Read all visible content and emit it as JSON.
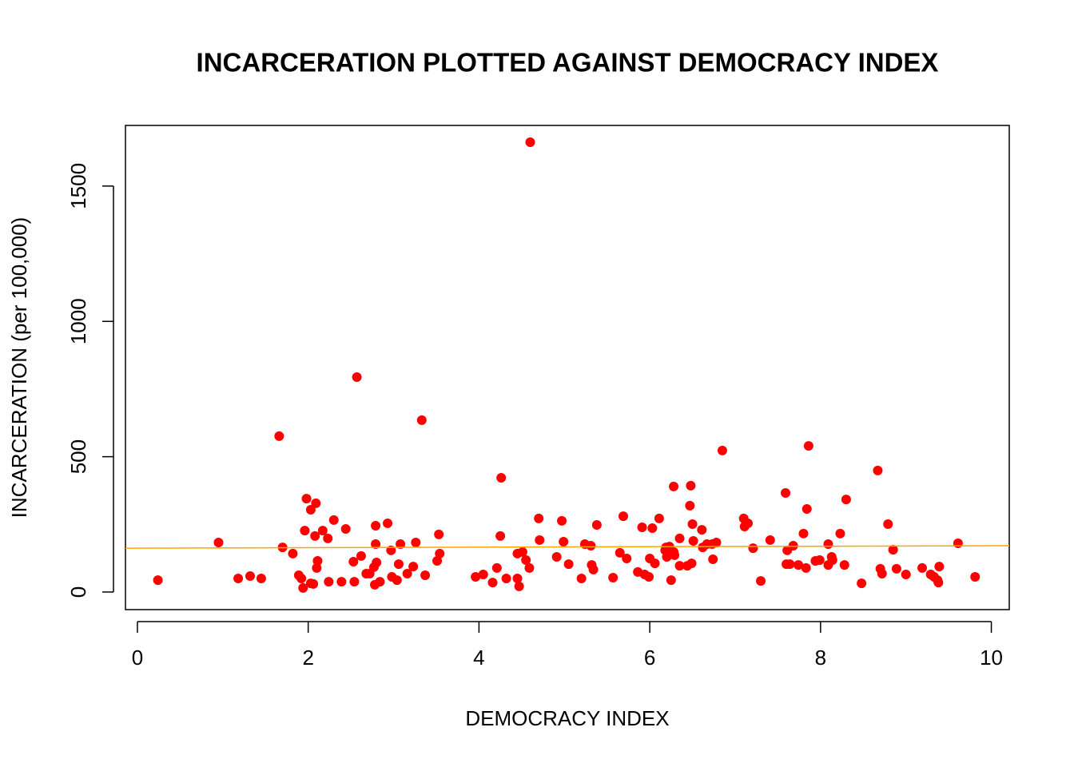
{
  "chart_data": {
    "type": "scatter",
    "title": "INCARCERATION PLOTTED AGAINST DEMOCRACY INDEX",
    "xlabel": "DEMOCRACY INDEX",
    "ylabel": "INCARCERATION (per 100,000)",
    "xlim": [
      -0.14,
      10.21
    ],
    "ylim": [
      -65,
      1724
    ],
    "xticks": [
      0,
      2,
      4,
      6,
      8,
      10
    ],
    "yticks": [
      0,
      500,
      1000,
      1500
    ],
    "grid": false,
    "series": [
      {
        "color": "#ff0000",
        "x": [
          0.24,
          0.95,
          1.18,
          1.32,
          1.45,
          1.66,
          1.7,
          1.82,
          1.89,
          1.92,
          1.94,
          1.96,
          1.98,
          2.03,
          2.03,
          2.06,
          2.08,
          2.09,
          2.1,
          2.11,
          2.17,
          2.23,
          2.24,
          2.3,
          2.39,
          2.44,
          2.53,
          2.54,
          2.57,
          2.62,
          2.68,
          2.72,
          2.77,
          2.78,
          2.79,
          2.79,
          2.8,
          2.84,
          2.93,
          2.97,
          2.98,
          3.04,
          3.06,
          3.08,
          3.16,
          3.23,
          3.26,
          3.33,
          3.37,
          3.51,
          3.53,
          3.54,
          3.96,
          4.05,
          4.16,
          4.21,
          4.25,
          4.26,
          4.32,
          4.45,
          4.45,
          4.47,
          4.51,
          4.55,
          4.59,
          4.6,
          4.7,
          4.71,
          4.91,
          4.97,
          4.99,
          5.05,
          5.2,
          5.24,
          5.31,
          5.32,
          5.34,
          5.38,
          5.57,
          5.65,
          5.69,
          5.73,
          5.86,
          5.91,
          5.94,
          5.99,
          6.0,
          6.03,
          6.06,
          6.11,
          6.18,
          6.19,
          6.2,
          6.23,
          6.25,
          6.28,
          6.28,
          6.29,
          6.35,
          6.35,
          6.44,
          6.47,
          6.48,
          6.49,
          6.5,
          6.51,
          6.61,
          6.62,
          6.67,
          6.73,
          6.74,
          6.78,
          6.85,
          7.1,
          7.11,
          7.15,
          7.21,
          7.3,
          7.41,
          7.59,
          7.6,
          7.61,
          7.64,
          7.68,
          7.74,
          7.8,
          7.83,
          7.84,
          7.86,
          7.94,
          7.99,
          8.09,
          8.09,
          8.13,
          8.14,
          8.23,
          8.28,
          8.3,
          8.48,
          8.67,
          8.7,
          8.72,
          8.79,
          8.85,
          8.89,
          9.0,
          9.19,
          9.29,
          9.33,
          9.37,
          9.38,
          9.39,
          9.61,
          9.81
        ],
        "y": [
          44,
          183,
          50,
          59,
          50,
          576,
          165,
          142,
          62,
          50,
          15,
          227,
          345,
          32,
          304,
          30,
          207,
          328,
          89,
          115,
          227,
          198,
          38,
          266,
          38,
          233,
          112,
          38,
          794,
          133,
          68,
          68,
          92,
          27,
          245,
          177,
          109,
          38,
          254,
          154,
          56,
          44,
          103,
          177,
          68,
          94,
          183,
          635,
          62,
          115,
          213,
          142,
          56,
          65,
          35,
          89,
          207,
          422,
          50,
          142,
          50,
          21,
          148,
          118,
          89,
          1662,
          272,
          192,
          130,
          263,
          186,
          103,
          50,
          177,
          171,
          100,
          83,
          248,
          53,
          145,
          280,
          124,
          74,
          239,
          65,
          56,
          124,
          236,
          106,
          272,
          154,
          165,
          130,
          168,
          44,
          390,
          148,
          136,
          198,
          97,
          97,
          319,
          393,
          106,
          251,
          189,
          230,
          165,
          177,
          177,
          121,
          183,
          523,
          272,
          242,
          254,
          162,
          41,
          192,
          366,
          103,
          154,
          103,
          171,
          100,
          216,
          89,
          307,
          540,
          115,
          118,
          100,
          177,
          130,
          118,
          216,
          100,
          342,
          32,
          449,
          86,
          68,
          251,
          156,
          86,
          65,
          89,
          65,
          56,
          44,
          35,
          94,
          180,
          56
        ]
      }
    ],
    "abline": {
      "intercept": 162,
      "slope": 0.9,
      "color": "#ffa500"
    }
  }
}
